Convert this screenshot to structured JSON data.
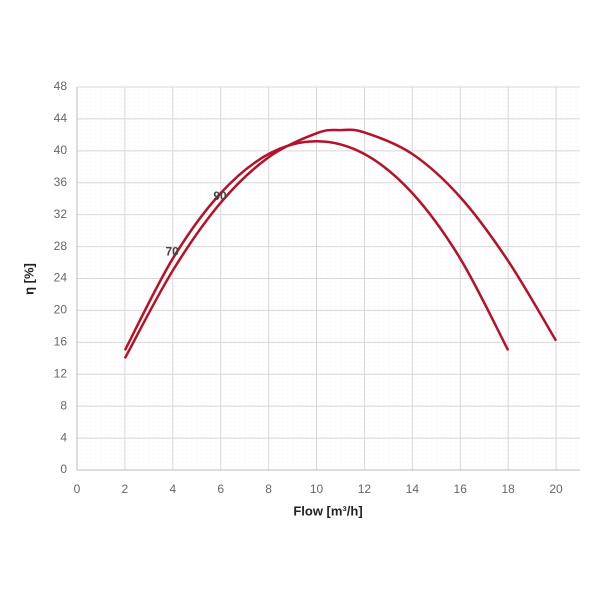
{
  "chart_data": {
    "type": "line",
    "x_label": "Flow [m³/h]",
    "y_label": "η [%]",
    "xlim": [
      0,
      21
    ],
    "xticks": [
      0,
      2,
      4,
      6,
      8,
      10,
      12,
      14,
      16,
      18,
      20
    ],
    "ylim": [
      0,
      48
    ],
    "yticks": [
      0,
      4,
      8,
      12,
      16,
      20,
      24,
      28,
      32,
      36,
      40,
      44,
      48
    ],
    "grid": true,
    "series": [
      {
        "name": "70",
        "color": "#b5122a",
        "x": [
          2,
          4,
          6,
          8,
          10,
          12,
          14,
          16,
          18
        ],
        "values": [
          15,
          26.5,
          34.7,
          39.6,
          41.2,
          39.6,
          34.7,
          26.5,
          15
        ]
      },
      {
        "name": "90",
        "color": "#b5122a",
        "x": [
          2,
          4,
          6,
          8,
          10,
          11,
          12,
          14,
          16,
          18,
          20
        ],
        "values": [
          14,
          25,
          33.5,
          39.2,
          42.2,
          42.6,
          42.3,
          39.6,
          34.2,
          26.2,
          16.2
        ]
      }
    ]
  }
}
